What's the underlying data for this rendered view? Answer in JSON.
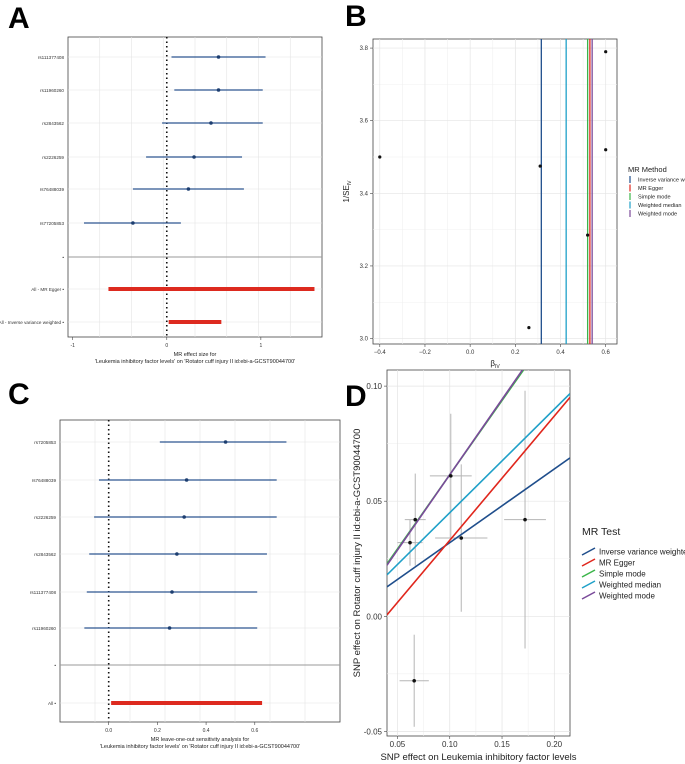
{
  "panels": {
    "a": "A",
    "b": "B",
    "c": "C",
    "d": "D"
  },
  "chart_data": [
    {
      "id": "A",
      "type": "forest",
      "title": "",
      "xlabel_line1": "MR effect size for",
      "xlabel_line2": "'Leukemia inhibitory factor levels' on 'Rotator cuff injury II id:ebi-a-GCST90044700'",
      "xlim": [
        -1.05,
        1.65
      ],
      "xticks": [
        -1,
        0,
        1
      ],
      "ref_line": 0,
      "snps": [
        {
          "label": "rs111377408",
          "est": 0.55,
          "lo": 0.05,
          "hi": 1.05
        },
        {
          "label": "rs11960260",
          "est": 0.55,
          "lo": 0.08,
          "hi": 1.02
        },
        {
          "label": "rs2843562",
          "est": 0.47,
          "lo": -0.05,
          "hi": 1.02
        },
        {
          "label": "rs2226259",
          "est": 0.29,
          "lo": -0.22,
          "hi": 0.8
        },
        {
          "label": "rs76488039",
          "est": 0.23,
          "lo": -0.36,
          "hi": 0.82
        },
        {
          "label": "rs77205853",
          "est": -0.36,
          "lo": -0.88,
          "hi": 0.15
        }
      ],
      "summary": [
        {
          "label": "All - MR Egger",
          "est": 0.55,
          "lo": -0.62,
          "hi": 1.57
        },
        {
          "label": "All - Inverse variance weighted",
          "est": 0.29,
          "lo": 0.02,
          "hi": 0.58
        }
      ]
    },
    {
      "id": "B",
      "type": "scatter",
      "xlabel": "β",
      "xlabel_sub": "IV",
      "ylabel": "1/SE",
      "ylabel_sub": "IV",
      "xlim": [
        -0.43,
        0.65
      ],
      "ylim": [
        2.985,
        3.825
      ],
      "xticks": [
        -0.4,
        -0.2,
        0.0,
        0.2,
        0.4,
        0.6
      ],
      "xtick_labels": [
        "−0.4",
        "−0.2",
        "0.0",
        "0.2",
        "0.4",
        "0.6"
      ],
      "yticks": [
        3.0,
        3.2,
        3.4,
        3.6,
        3.8
      ],
      "ytick_labels": [
        "3.0",
        "3.2",
        "3.4",
        "3.6",
        "3.8"
      ],
      "points": [
        {
          "x": -0.4,
          "y": 3.5
        },
        {
          "x": 0.26,
          "y": 3.03
        },
        {
          "x": 0.31,
          "y": 3.475
        },
        {
          "x": 0.52,
          "y": 3.285
        },
        {
          "x": 0.6,
          "y": 3.79
        },
        {
          "x": 0.6,
          "y": 3.52
        }
      ],
      "legend_title": "MR Method",
      "methods": [
        {
          "name": "Inverse variance weighted",
          "beta": 0.315,
          "color": "#1f4e8c"
        },
        {
          "name": "MR Egger",
          "beta": 0.53,
          "color": "#e0261c"
        },
        {
          "name": "Simple mode",
          "beta": 0.52,
          "color": "#3cb54a"
        },
        {
          "name": "Weighted median",
          "beta": 0.425,
          "color": "#1fa0c8"
        },
        {
          "name": "Weighted mode",
          "beta": 0.54,
          "color": "#7a4a9a"
        }
      ]
    },
    {
      "id": "C",
      "type": "forest",
      "xlabel_line1": "MR leave-one-out sensitivity analysis for",
      "xlabel_line2": "'Leukemia inhibitory factor levels' on 'Rotator cuff injury II id:ebi-a-GCST90044700'",
      "xlim": [
        -0.2,
        0.95
      ],
      "xticks": [
        0.0,
        0.2,
        0.4,
        0.6
      ],
      "xtick_labels": [
        "0.0",
        "0.2",
        "0.4",
        "0.6"
      ],
      "ref_line": 0,
      "snps": [
        {
          "label": "rs7205853",
          "est": 0.48,
          "lo": 0.21,
          "hi": 0.73
        },
        {
          "label": "rs76488039",
          "est": 0.32,
          "lo": -0.04,
          "hi": 0.69
        },
        {
          "label": "rs2226259",
          "est": 0.31,
          "lo": -0.06,
          "hi": 0.69
        },
        {
          "label": "rs2843562",
          "est": 0.28,
          "lo": -0.08,
          "hi": 0.65
        },
        {
          "label": "rs111377408",
          "est": 0.26,
          "lo": -0.09,
          "hi": 0.61
        },
        {
          "label": "rs11960260",
          "est": 0.25,
          "lo": -0.1,
          "hi": 0.61
        }
      ],
      "summary": [
        {
          "label": "All",
          "est": 0.29,
          "lo": 0.01,
          "hi": 0.63
        }
      ]
    },
    {
      "id": "D",
      "type": "scatter",
      "xlabel": "SNP effect on Leukemia inhibitory factor levels",
      "ylabel": "SNP effect on Rotator cuff injury II id:ebi-a-GCST90044700",
      "xlim": [
        0.04,
        0.215
      ],
      "ylim": [
        -0.052,
        0.107
      ],
      "xticks": [
        0.05,
        0.1,
        0.15,
        0.2
      ],
      "xtick_labels": [
        "0.05",
        "0.10",
        "0.15",
        "0.20"
      ],
      "yticks": [
        -0.05,
        0.0,
        0.05,
        0.1
      ],
      "ytick_labels": [
        "-0.05",
        "0.00",
        "0.05",
        "0.10"
      ],
      "points": [
        {
          "x": 0.062,
          "y": 0.032,
          "xerr": 0.012,
          "yerr": 0.01
        },
        {
          "x": 0.067,
          "y": 0.042,
          "xerr": 0.01,
          "yerr": 0.02
        },
        {
          "x": 0.101,
          "y": 0.061,
          "xerr": 0.02,
          "yerr": 0.027
        },
        {
          "x": 0.111,
          "y": 0.034,
          "xerr": 0.025,
          "yerr": 0.032
        },
        {
          "x": 0.172,
          "y": 0.042,
          "xerr": 0.02,
          "yerr": 0.056
        },
        {
          "x": 0.066,
          "y": -0.028,
          "xerr": 0.014,
          "yerr": 0.02
        }
      ],
      "legend_title": "MR Test",
      "methods": [
        {
          "name": "Inverse variance weighted",
          "slope": 0.32,
          "intercept": 0,
          "color": "#1f4e8c"
        },
        {
          "name": "MR Egger",
          "slope": 0.54,
          "intercept": -0.021,
          "color": "#e0261c"
        },
        {
          "name": "Simple mode",
          "slope": 0.645,
          "intercept": -0.003,
          "color": "#3cb54a"
        },
        {
          "name": "Weighted median",
          "slope": 0.45,
          "intercept": 0,
          "color": "#1fa0c8"
        },
        {
          "name": "Weighted mode",
          "slope": 0.655,
          "intercept": -0.004,
          "color": "#7a4a9a"
        }
      ]
    }
  ]
}
